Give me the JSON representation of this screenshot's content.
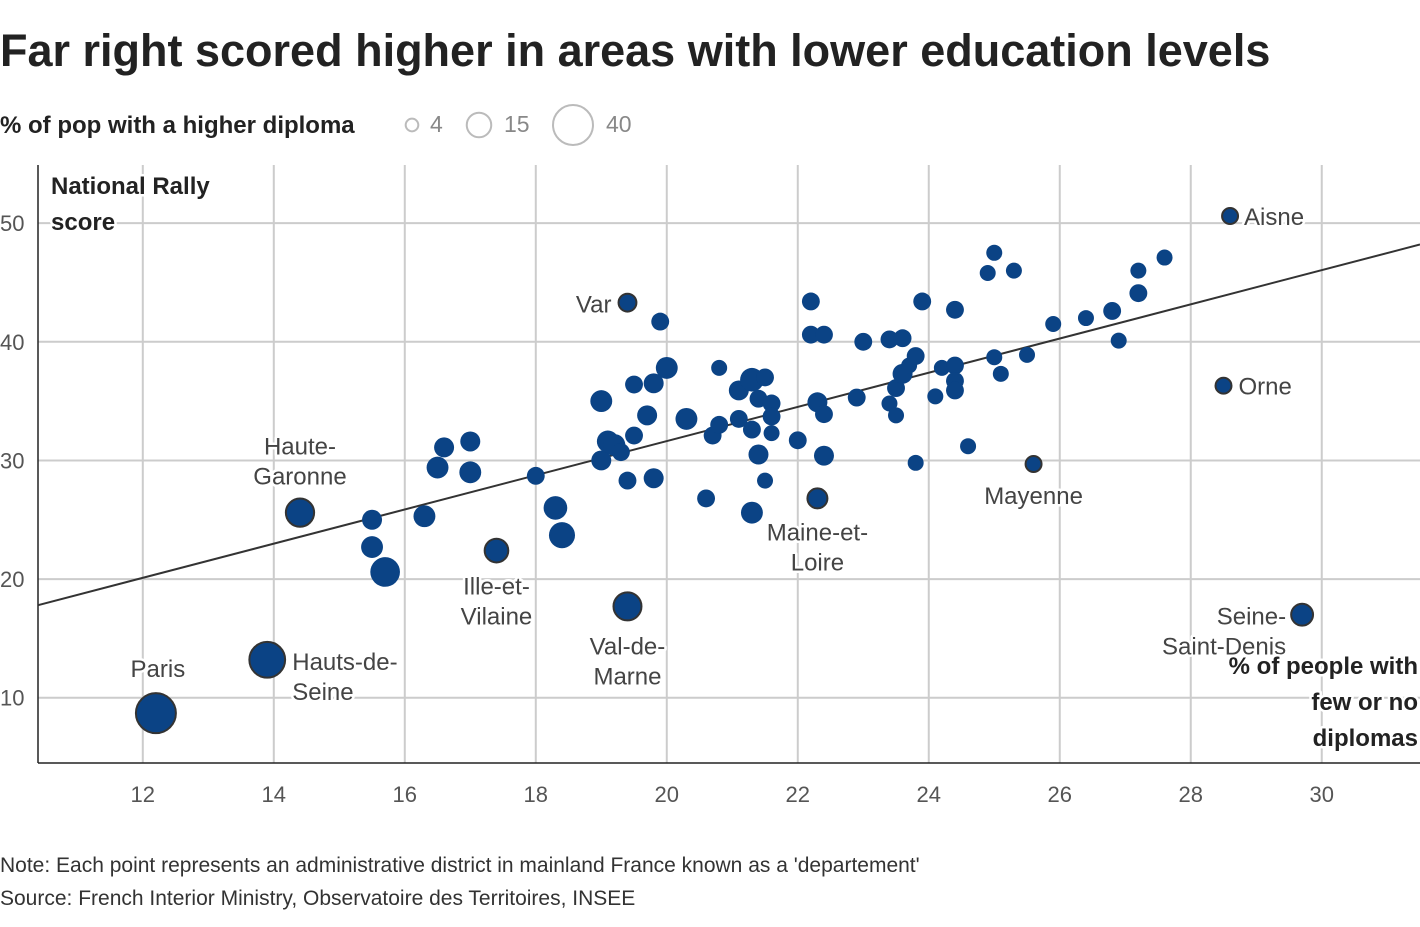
{
  "title": "Far right scored higher in areas with lower education levels",
  "legend": {
    "title": "% of pop with a higher diploma",
    "sizes": [
      4,
      15,
      40
    ],
    "labels": [
      "4",
      "15",
      "40"
    ]
  },
  "note": "Note: Each point represents an administrative district in mainland France known as a 'departement'",
  "source": "Source: French Interior Ministry, Observatoire des Territoires, INSEE",
  "colors": {
    "point": "#0b4385",
    "highlight_stroke": "#333333",
    "trend": "#333333",
    "grid": "#cccccc"
  },
  "chart_data": {
    "type": "scatter",
    "title": "Far right scored higher in areas with lower education levels",
    "xlabel": "% of people with few or no diplomas",
    "ylabel": "National Rally score",
    "xlabel_lines": [
      "% of people with",
      "few or no",
      "diplomas"
    ],
    "ylabel_lines": [
      "National Rally",
      "score"
    ],
    "xlim": [
      10.4,
      31.5
    ],
    "ylim": [
      4.5,
      54.9
    ],
    "xticks": [
      12,
      14,
      16,
      18,
      20,
      22,
      24,
      26,
      28,
      30
    ],
    "yticks": [
      10,
      20,
      30,
      40,
      50
    ],
    "grid": true,
    "size_variable": "% of pop with a higher diploma",
    "trendline": {
      "x": [
        10.4,
        31.5
      ],
      "y": [
        17.8,
        48.2
      ]
    },
    "points": [
      {
        "x": 12.2,
        "y": 8.7,
        "size": 40,
        "label": [
          "Paris"
        ]
      },
      {
        "x": 13.9,
        "y": 13.2,
        "size": 32,
        "label": [
          "Hauts-de-",
          "Seine"
        ]
      },
      {
        "x": 14.4,
        "y": 25.6,
        "size": 20,
        "label": [
          "Haute-",
          "Garonne"
        ]
      },
      {
        "x": 15.5,
        "y": 25.0,
        "size": 10
      },
      {
        "x": 15.5,
        "y": 22.7,
        "size": 12
      },
      {
        "x": 15.7,
        "y": 20.6,
        "size": 22
      },
      {
        "x": 16.3,
        "y": 25.3,
        "size": 12
      },
      {
        "x": 16.5,
        "y": 29.4,
        "size": 12
      },
      {
        "x": 16.6,
        "y": 31.1,
        "size": 10
      },
      {
        "x": 17.0,
        "y": 31.6,
        "size": 10
      },
      {
        "x": 17.0,
        "y": 29.0,
        "size": 12
      },
      {
        "x": 17.4,
        "y": 22.4,
        "size": 14,
        "label": [
          "Ille-et-",
          "Vilaine"
        ]
      },
      {
        "x": 18.0,
        "y": 28.7,
        "size": 8
      },
      {
        "x": 18.3,
        "y": 26.0,
        "size": 14
      },
      {
        "x": 18.4,
        "y": 23.7,
        "size": 17
      },
      {
        "x": 19.0,
        "y": 35.0,
        "size": 12
      },
      {
        "x": 19.0,
        "y": 30.0,
        "size": 10
      },
      {
        "x": 19.1,
        "y": 31.6,
        "size": 12
      },
      {
        "x": 19.2,
        "y": 31.3,
        "size": 12
      },
      {
        "x": 19.3,
        "y": 30.7,
        "size": 8
      },
      {
        "x": 19.4,
        "y": 43.3,
        "size": 8,
        "label": [
          "Var"
        ]
      },
      {
        "x": 19.4,
        "y": 17.7,
        "size": 19.6,
        "label": [
          "Val-de-",
          "Marne"
        ]
      },
      {
        "x": 19.4,
        "y": 28.3,
        "size": 8
      },
      {
        "x": 19.5,
        "y": 36.4,
        "size": 8
      },
      {
        "x": 19.5,
        "y": 32.1,
        "size": 8
      },
      {
        "x": 19.7,
        "y": 33.8,
        "size": 10
      },
      {
        "x": 19.8,
        "y": 36.5,
        "size": 10
      },
      {
        "x": 19.8,
        "y": 28.5,
        "size": 10
      },
      {
        "x": 19.9,
        "y": 41.7,
        "size": 8
      },
      {
        "x": 20.0,
        "y": 37.8,
        "size": 12
      },
      {
        "x": 20.3,
        "y": 33.5,
        "size": 12
      },
      {
        "x": 20.6,
        "y": 26.8,
        "size": 8
      },
      {
        "x": 20.7,
        "y": 32.1,
        "size": 8
      },
      {
        "x": 20.8,
        "y": 37.8,
        "size": 6.4
      },
      {
        "x": 20.8,
        "y": 33.0,
        "size": 8
      },
      {
        "x": 21.1,
        "y": 33.5,
        "size": 8
      },
      {
        "x": 21.1,
        "y": 35.9,
        "size": 10
      },
      {
        "x": 21.3,
        "y": 36.8,
        "size": 14
      },
      {
        "x": 21.3,
        "y": 25.6,
        "size": 12
      },
      {
        "x": 21.3,
        "y": 32.6,
        "size": 8
      },
      {
        "x": 21.4,
        "y": 35.2,
        "size": 8
      },
      {
        "x": 21.4,
        "y": 30.5,
        "size": 10
      },
      {
        "x": 21.5,
        "y": 28.3,
        "size": 6.4
      },
      {
        "x": 21.5,
        "y": 37.0,
        "size": 8
      },
      {
        "x": 21.6,
        "y": 34.8,
        "size": 8
      },
      {
        "x": 21.6,
        "y": 33.7,
        "size": 8
      },
      {
        "x": 21.6,
        "y": 32.3,
        "size": 6.4
      },
      {
        "x": 22.0,
        "y": 31.7,
        "size": 8
      },
      {
        "x": 22.2,
        "y": 43.4,
        "size": 8
      },
      {
        "x": 22.2,
        "y": 40.6,
        "size": 8
      },
      {
        "x": 22.4,
        "y": 40.6,
        "size": 8
      },
      {
        "x": 22.3,
        "y": 34.9,
        "size": 10
      },
      {
        "x": 22.4,
        "y": 33.9,
        "size": 8
      },
      {
        "x": 22.4,
        "y": 30.4,
        "size": 10
      },
      {
        "x": 22.3,
        "y": 26.8,
        "size": 10,
        "label": [
          "Maine-et-",
          "Loire"
        ]
      },
      {
        "x": 22.9,
        "y": 35.3,
        "size": 8
      },
      {
        "x": 23.0,
        "y": 40.0,
        "size": 8
      },
      {
        "x": 23.4,
        "y": 40.2,
        "size": 8
      },
      {
        "x": 23.6,
        "y": 40.3,
        "size": 8
      },
      {
        "x": 23.4,
        "y": 34.8,
        "size": 6.4
      },
      {
        "x": 23.5,
        "y": 36.1,
        "size": 8
      },
      {
        "x": 23.5,
        "y": 33.8,
        "size": 6.4
      },
      {
        "x": 23.6,
        "y": 37.3,
        "size": 10
      },
      {
        "x": 23.7,
        "y": 38.0,
        "size": 6.4
      },
      {
        "x": 23.8,
        "y": 38.8,
        "size": 8
      },
      {
        "x": 23.8,
        "y": 29.8,
        "size": 6.4
      },
      {
        "x": 23.9,
        "y": 43.4,
        "size": 8
      },
      {
        "x": 24.1,
        "y": 35.4,
        "size": 6.4
      },
      {
        "x": 24.2,
        "y": 37.8,
        "size": 6.4
      },
      {
        "x": 24.4,
        "y": 42.7,
        "size": 8
      },
      {
        "x": 24.4,
        "y": 38.0,
        "size": 8
      },
      {
        "x": 24.4,
        "y": 36.7,
        "size": 8
      },
      {
        "x": 24.4,
        "y": 35.9,
        "size": 8
      },
      {
        "x": 24.6,
        "y": 31.2,
        "size": 6.4
      },
      {
        "x": 24.9,
        "y": 45.8,
        "size": 6.4
      },
      {
        "x": 25.0,
        "y": 47.5,
        "size": 6.4
      },
      {
        "x": 25.0,
        "y": 38.7,
        "size": 6.4
      },
      {
        "x": 25.1,
        "y": 37.3,
        "size": 6.4
      },
      {
        "x": 25.3,
        "y": 46.0,
        "size": 6.4
      },
      {
        "x": 25.6,
        "y": 29.7,
        "size": 6.4,
        "label": [
          "Mayenne"
        ]
      },
      {
        "x": 25.5,
        "y": 38.9,
        "size": 6.4
      },
      {
        "x": 25.9,
        "y": 41.5,
        "size": 6.4
      },
      {
        "x": 26.4,
        "y": 42.0,
        "size": 6.4
      },
      {
        "x": 26.8,
        "y": 42.6,
        "size": 8
      },
      {
        "x": 26.9,
        "y": 40.1,
        "size": 6.4
      },
      {
        "x": 27.2,
        "y": 46.0,
        "size": 6.4
      },
      {
        "x": 27.2,
        "y": 44.1,
        "size": 8
      },
      {
        "x": 27.6,
        "y": 47.1,
        "size": 6.4
      },
      {
        "x": 28.6,
        "y": 50.6,
        "size": 6.4,
        "label": [
          "Aisne"
        ]
      },
      {
        "x": 28.5,
        "y": 36.3,
        "size": 6.4,
        "label": [
          "Orne"
        ]
      },
      {
        "x": 29.7,
        "y": 17.0,
        "size": 12,
        "label": [
          "Seine-",
          "Saint-Denis"
        ]
      }
    ]
  }
}
